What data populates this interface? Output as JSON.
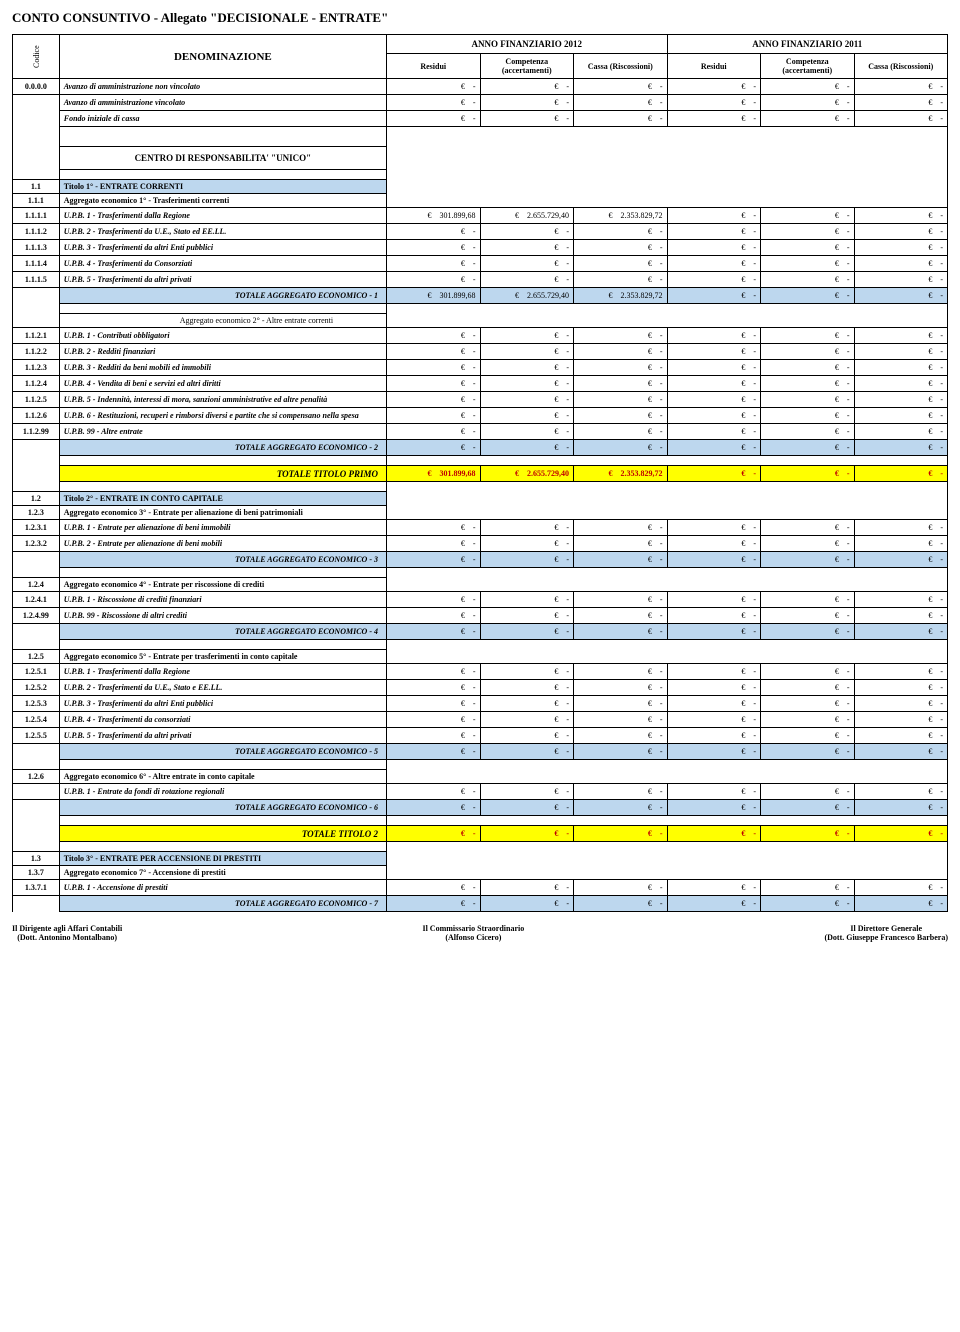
{
  "doc_title": "CONTO CONSUNTIVO - Allegato \"DECISIONALE - ENTRATE\"",
  "colors": {
    "blue": "#bdd7ee",
    "yellow": "#ffff00",
    "white": "#ffffff"
  },
  "header": {
    "codice": "Codice",
    "denom": "DENOMINAZIONE",
    "y2012": "ANNO FINANZIARIO 2012",
    "y2011": "ANNO FINANZIARIO 2011",
    "residui": "Residui",
    "competenza": "Competenza (accertamenti)",
    "cassa": "Cassa (Riscossioni)"
  },
  "avanzo": {
    "code": "0.0.0.0",
    "r1": "Avanzo di amministrazione non vincolato",
    "r2": "Avanzo di amministrazione vincolato",
    "r3": "Fondo iniziale di cassa"
  },
  "centro": "CENTRO DI RESPONSABILITA' \"UNICO\"",
  "t1": {
    "code": "1.1",
    "title": "Titolo 1° - ENTRATE CORRENTI",
    "a1": {
      "code": "1.1.1",
      "title": "Aggregato economico  1° - Trasferimenti correnti",
      "rows": [
        {
          "code": "1.1.1.1",
          "label": "U.P.B. 1 - Trasferimenti dalla Regione",
          "v": [
            "301.899,68",
            "2.655.729,40",
            "2.353.829,72",
            "-",
            "-",
            "-"
          ]
        },
        {
          "code": "1.1.1.2",
          "label": "U.P.B. 2 - Trasferimenti da U.E., Stato ed EE.LL.",
          "v": [
            "-",
            "-",
            "-",
            "-",
            "-",
            "-"
          ]
        },
        {
          "code": "1.1.1.3",
          "label": "U.P.B. 3 - Trasferimenti da altri Enti pubblici",
          "v": [
            "-",
            "-",
            "-",
            "-",
            "-",
            "-"
          ]
        },
        {
          "code": "1.1.1.4",
          "label": "U.P.B. 4 - Trasferimenti da Consorziati",
          "v": [
            "-",
            "-",
            "-",
            "-",
            "-",
            "-"
          ]
        },
        {
          "code": "1.1.1.5",
          "label": "U.P.B. 5 - Trasferimenti da altri privati",
          "v": [
            "-",
            "-",
            "-",
            "-",
            "-",
            "-"
          ]
        }
      ],
      "tot_label": "TOTALE AGGREGATO ECONOMICO - 1",
      "tot": [
        "301.899,68",
        "2.655.729,40",
        "2.353.829,72",
        "-",
        "-",
        "-"
      ]
    },
    "a2": {
      "title": "Aggregato economico  2° - Altre entrate correnti",
      "rows": [
        {
          "code": "1.1.2.1",
          "label": "U.P.B. 1 - Contributi obbligatori",
          "v": [
            "-",
            "-",
            "-",
            "-",
            "-",
            "-"
          ]
        },
        {
          "code": "1.1.2.2",
          "label": "U.P.B. 2 - Redditi finanziari",
          "v": [
            "-",
            "-",
            "-",
            "-",
            "-",
            "-"
          ]
        },
        {
          "code": "1.1.2.3",
          "label": "U.P.B. 3 - Redditi da beni mobili ed immobili",
          "v": [
            "-",
            "-",
            "-",
            "-",
            "-",
            "-"
          ]
        },
        {
          "code": "1.1.2.4",
          "label": "U.P.B. 4 - Vendita di beni e servizi ed altri diritti",
          "v": [
            "-",
            "-",
            "-",
            "-",
            "-",
            "-"
          ]
        },
        {
          "code": "1.1.2.5",
          "label": "U.P.B. 5 - Indennità, interessi di mora, sanzioni amministrative ed altre penalità",
          "v": [
            "-",
            "-",
            "-",
            "-",
            "-",
            "-"
          ]
        },
        {
          "code": "1.1.2.6",
          "label": "U.P.B. 6 - Restituzioni, recuperi e rimborsi diversi e partite che si compensano nella spesa",
          "v": [
            "-",
            "-",
            "-",
            "-",
            "-",
            "-"
          ]
        },
        {
          "code": "1.1.2.99",
          "label": "U.P.B. 99 - Altre entrate",
          "v": [
            "-",
            "-",
            "-",
            "-",
            "-",
            "-"
          ]
        }
      ],
      "tot_label": "TOTALE AGGREGATO ECONOMICO - 2",
      "tot": [
        "-",
        "-",
        "-",
        "-",
        "-",
        "-"
      ]
    },
    "tot_title_label": "TOTALE TITOLO PRIMO",
    "tot_title": [
      "301.899,68",
      "2.655.729,40",
      "2.353.829,72",
      "-",
      "-",
      "-"
    ]
  },
  "t2": {
    "code": "1.2",
    "title": "Titolo 2° - ENTRATE IN CONTO CAPITALE",
    "a3": {
      "code": "1.2.3",
      "title": "Aggregato economico 3° - Entrate per alienazione di beni patrimoniali",
      "rows": [
        {
          "code": "1.2.3.1",
          "label": "U.P.B. 1 - Entrate per alienazione di beni immobili",
          "v": [
            "-",
            "-",
            "-",
            "-",
            "-",
            "-"
          ]
        },
        {
          "code": "1.2.3.2",
          "label": "U.P.B. 2 - Entrate per alienazione di beni mobili",
          "v": [
            "-",
            "-",
            "-",
            "-",
            "-",
            "-"
          ]
        }
      ],
      "tot_label": "TOTALE AGGREGATO ECONOMICO - 3",
      "tot": [
        "-",
        "-",
        "-",
        "-",
        "-",
        "-"
      ]
    },
    "a4": {
      "code": "1.2.4",
      "title": "Aggregato economico 4° - Entrate per riscossione di crediti",
      "rows": [
        {
          "code": "1.2.4.1",
          "label": "U.P.B. 1 - Riscossione di crediti finanziari",
          "v": [
            "-",
            "-",
            "-",
            "-",
            "-",
            "-"
          ]
        },
        {
          "code": "1.2.4.99",
          "label": "U.P.B. 99 - Riscossione di altri crediti",
          "v": [
            "-",
            "-",
            "-",
            "-",
            "-",
            "-"
          ]
        }
      ],
      "tot_label": "TOTALE AGGREGATO ECONOMICO - 4",
      "tot": [
        "-",
        "-",
        "-",
        "-",
        "-",
        "-"
      ]
    },
    "a5": {
      "code": "1.2.5",
      "title": "Aggregato economico 5° - Entrate per trasferimenti in conto capitale",
      "rows": [
        {
          "code": "1.2.5.1",
          "label": "U.P.B. 1 - Trasferimenti dalla Regione",
          "v": [
            "-",
            "-",
            "-",
            "-",
            "-",
            "-"
          ]
        },
        {
          "code": "1.2.5.2",
          "label": "U.P.B. 2 - Trasferimenti da U.E., Stato e EE.LL.",
          "v": [
            "-",
            "-",
            "-",
            "-",
            "-",
            "-"
          ]
        },
        {
          "code": "1.2.5.3",
          "label": "U.P.B. 3 - Trasferimenti da altri Enti pubblici",
          "v": [
            "-",
            "-",
            "-",
            "-",
            "-",
            "-"
          ]
        },
        {
          "code": "1.2.5.4",
          "label": "U.P.B. 4 - Trasferimenti da consorziati",
          "v": [
            "-",
            "-",
            "-",
            "-",
            "-",
            "-"
          ]
        },
        {
          "code": "1.2.5.5",
          "label": "U.P.B. 5 - Trasferimenti da altri privati",
          "v": [
            "-",
            "-",
            "-",
            "-",
            "-",
            "-"
          ]
        }
      ],
      "tot_label": "TOTALE AGGREGATO ECONOMICO - 5",
      "tot": [
        "-",
        "-",
        "-",
        "-",
        "-",
        "-"
      ]
    },
    "a6": {
      "code": "1.2.6",
      "title": "Aggregato economico 6° - Altre entrate in conto capitale",
      "rows": [
        {
          "code": "",
          "label": "U.P.B. 1 - Entrate da fondi di rotazione regionali",
          "v": [
            "-",
            "-",
            "-",
            "-",
            "-",
            "-"
          ]
        }
      ],
      "tot_label": "TOTALE AGGREGATO ECONOMICO - 6",
      "tot": [
        "-",
        "-",
        "-",
        "-",
        "-",
        "-"
      ]
    },
    "tot_title_label": "TOTALE TITOLO 2",
    "tot_title": [
      "-",
      "-",
      "-",
      "-",
      "-",
      "-"
    ]
  },
  "t3": {
    "code": "1.3",
    "title": "Titolo 3° - ENTRATE PER ACCENSIONE DI PRESTITI",
    "a7": {
      "code": "1.3.7",
      "title": "Aggregato economico 7° - Accensione di prestiti",
      "rows": [
        {
          "code": "1.3.7.1",
          "label": "U.P.B. 1 - Accensione di prestiti",
          "v": [
            "-",
            "-",
            "-",
            "-",
            "-",
            "-"
          ]
        }
      ],
      "tot_label": "TOTALE AGGREGATO ECONOMICO - 7",
      "tot": [
        "-",
        "-",
        "-",
        "-",
        "-",
        "-"
      ]
    }
  },
  "footer": {
    "left_t": "Il Dirigente agli Affari Contabili",
    "left_b": "(Dott. Antonino Montalbano)",
    "mid_t": "Il Commissario Straordinario",
    "mid_b": "(Alfonso Cicero)",
    "right_t": "Il Direttore Generale",
    "right_b": "(Dott. Giuseppe Francesco Barbera)"
  },
  "euro": "€"
}
